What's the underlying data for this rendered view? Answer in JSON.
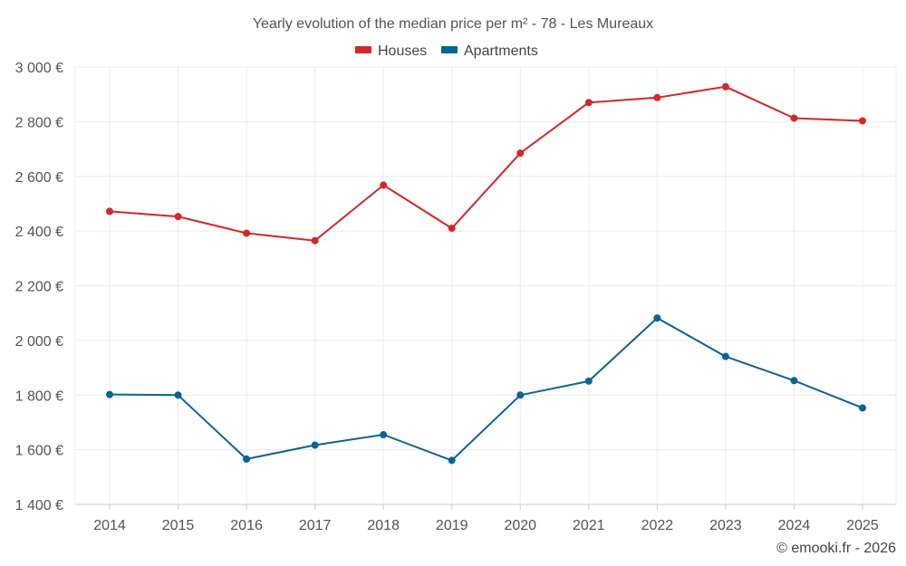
{
  "chart_data": {
    "type": "line",
    "title": "Yearly evolution of the median price per m² - 78 - Les Mureaux",
    "categories": [
      "2014",
      "2015",
      "2016",
      "2017",
      "2018",
      "2019",
      "2020",
      "2021",
      "2022",
      "2023",
      "2024",
      "2025"
    ],
    "series": [
      {
        "name": "Houses",
        "color": "#d62728",
        "values": [
          2472,
          2453,
          2392,
          2365,
          2568,
          2410,
          2685,
          2870,
          2888,
          2928,
          2813,
          2803
        ]
      },
      {
        "name": "Apartments",
        "color": "#0a6398",
        "values": [
          1802,
          1800,
          1566,
          1617,
          1655,
          1561,
          1800,
          1851,
          2082,
          1941,
          1853,
          1753
        ]
      }
    ],
    "y_ticks": [
      "1 400 €",
      "1 600 €",
      "1 800 €",
      "2 000 €",
      "2 200 €",
      "2 400 €",
      "2 600 €",
      "2 800 €",
      "3 000 €"
    ],
    "ylim": [
      1400,
      3000
    ],
    "xlabel": "",
    "ylabel": "",
    "grid": true,
    "legend_position": "top-center",
    "credit": "© emooki.fr - 2026"
  }
}
